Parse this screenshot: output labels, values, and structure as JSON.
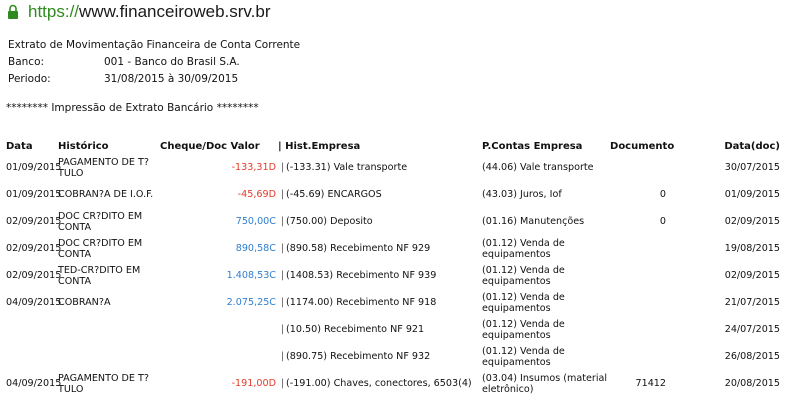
{
  "browser": {
    "scheme": "https://",
    "host": "www.financeiroweb.srv.br"
  },
  "header": {
    "title": "Extrato de Movimentação Financeira de Conta Corrente",
    "banco_label": "Banco:",
    "banco_value": "001 - Banco do Brasil S.A.",
    "periodo_label": "Periodo:",
    "periodo_value": "31/08/2015 à 30/09/2015"
  },
  "banner": "******** Impressão de Extrato Bancário ********",
  "table": {
    "columns": {
      "data": "Data",
      "historico": "Histórico",
      "cheque": "Cheque/Doc",
      "valor": "Valor",
      "hist_empresa": "| Hist.Empresa",
      "p_contas": "P.Contas Empresa",
      "documento": "Documento",
      "data_doc": "Data(doc)"
    },
    "rows": [
      {
        "data": "01/09/2015",
        "historico": "PAGAMENTO DE T?TULO",
        "valor": "-133,31D",
        "sign": "neg",
        "sep": "|",
        "hist_empresa": "(-133.31) Vale transporte",
        "p_contas": "(44.06) Vale transporte",
        "documento": "",
        "data_doc": "30/07/2015"
      },
      {
        "data": "01/09/2015",
        "historico": "COBRAN?A DE I.O.F.",
        "valor": "-45,69D",
        "sign": "neg",
        "sep": "|",
        "hist_empresa": "(-45.69) ENCARGOS",
        "p_contas": "(43.03) Juros, Iof",
        "documento": "0",
        "data_doc": "01/09/2015"
      },
      {
        "data": "02/09/2015",
        "historico": "DOC CR?DITO EM CONTA",
        "valor": "750,00C",
        "sign": "pos",
        "sep": "|",
        "hist_empresa": "(750.00) Deposito",
        "p_contas": "(01.16) Manutenções",
        "documento": "0",
        "data_doc": "02/09/2015"
      },
      {
        "data": "02/09/2015",
        "historico": "DOC CR?DITO EM CONTA",
        "valor": "890,58C",
        "sign": "pos",
        "sep": "|",
        "hist_empresa": "(890.58) Recebimento NF 929",
        "p_contas": "(01.12) Venda de equipamentos",
        "documento": "",
        "data_doc": "19/08/2015"
      },
      {
        "data": "02/09/2015",
        "historico": "TED-CR?DITO EM CONTA",
        "valor": "1.408,53C",
        "sign": "pos",
        "sep": "|",
        "hist_empresa": "(1408.53) Recebimento NF 939",
        "p_contas": "(01.12) Venda de equipamentos",
        "documento": "",
        "data_doc": "02/09/2015"
      },
      {
        "data": "04/09/2015",
        "historico": "COBRAN?A",
        "valor": "2.075,25C",
        "sign": "pos",
        "sep": "|",
        "hist_empresa": "(1174.00) Recebimento NF 918",
        "p_contas": "(01.12) Venda de equipamentos",
        "documento": "",
        "data_doc": "21/07/2015"
      },
      {
        "data": "",
        "historico": "",
        "valor": "",
        "sign": "",
        "sep": "|",
        "hist_empresa": "(10.50) Recebimento NF 921",
        "p_contas": "(01.12) Venda de equipamentos",
        "documento": "",
        "data_doc": "24/07/2015"
      },
      {
        "data": "",
        "historico": "",
        "valor": "",
        "sign": "",
        "sep": "|",
        "hist_empresa": "(890.75) Recebimento NF 932",
        "p_contas": "(01.12) Venda de equipamentos",
        "documento": "",
        "data_doc": "26/08/2015"
      },
      {
        "data": "04/09/2015",
        "historico": "PAGAMENTO DE T?TULO",
        "valor": "-191,00D",
        "sign": "neg",
        "sep": "|",
        "hist_empresa": "(-191.00) Chaves, conectores, 6503(4)",
        "p_contas": "(03.04) Insumos (material eletrônico)",
        "documento": "71412",
        "data_doc": "20/08/2015"
      }
    ]
  },
  "colors": {
    "negative": "#e23b2b",
    "positive": "#2f7fd0",
    "lock": "#2f8b1f"
  }
}
